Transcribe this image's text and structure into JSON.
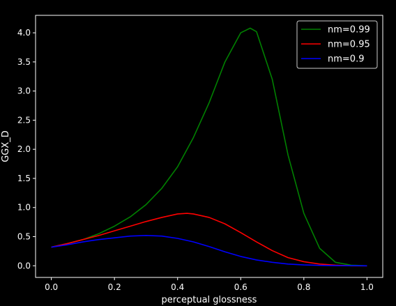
{
  "chart_data": {
    "type": "line",
    "title": "",
    "xlabel": "perceptual glossness",
    "ylabel": "GGX_D",
    "xlim": [
      -0.05,
      1.05
    ],
    "ylim": [
      -0.2,
      4.3
    ],
    "xticks": [
      0.0,
      0.2,
      0.4,
      0.6,
      0.8,
      1.0
    ],
    "xtick_labels": [
      "0.0",
      "0.2",
      "0.4",
      "0.6",
      "0.8",
      "1.0"
    ],
    "yticks": [
      0.0,
      0.5,
      1.0,
      1.5,
      2.0,
      2.5,
      3.0,
      3.5,
      4.0
    ],
    "ytick_labels": [
      "0.0",
      "0.5",
      "1.0",
      "1.5",
      "2.0",
      "2.5",
      "3.0",
      "3.5",
      "4.0"
    ],
    "grid": false,
    "legend_position": "top-right",
    "background": "#000000",
    "foreground": "#ffffff",
    "series": [
      {
        "name": "nm=0.99",
        "color": "#008000",
        "x": [
          0.0,
          0.05,
          0.1,
          0.15,
          0.2,
          0.25,
          0.3,
          0.35,
          0.4,
          0.45,
          0.5,
          0.55,
          0.6,
          0.63,
          0.65,
          0.7,
          0.75,
          0.8,
          0.85,
          0.9,
          0.95,
          1.0
        ],
        "y": [
          0.32,
          0.38,
          0.45,
          0.55,
          0.68,
          0.84,
          1.05,
          1.33,
          1.7,
          2.2,
          2.8,
          3.5,
          4.0,
          4.08,
          4.02,
          3.2,
          1.9,
          0.9,
          0.3,
          0.06,
          0.01,
          0.0
        ]
      },
      {
        "name": "nm=0.95",
        "color": "#ff0000",
        "x": [
          0.0,
          0.05,
          0.1,
          0.15,
          0.2,
          0.25,
          0.3,
          0.35,
          0.4,
          0.43,
          0.45,
          0.5,
          0.55,
          0.6,
          0.65,
          0.7,
          0.75,
          0.8,
          0.85,
          0.9,
          0.95,
          1.0
        ],
        "y": [
          0.32,
          0.38,
          0.45,
          0.52,
          0.6,
          0.68,
          0.76,
          0.83,
          0.89,
          0.9,
          0.89,
          0.83,
          0.72,
          0.57,
          0.41,
          0.26,
          0.14,
          0.07,
          0.03,
          0.01,
          0.0,
          0.0
        ]
      },
      {
        "name": "nm=0.9",
        "color": "#0000ff",
        "x": [
          0.0,
          0.05,
          0.1,
          0.15,
          0.2,
          0.25,
          0.3,
          0.35,
          0.4,
          0.45,
          0.5,
          0.55,
          0.6,
          0.65,
          0.7,
          0.75,
          0.8,
          0.85,
          0.9,
          0.95,
          1.0
        ],
        "y": [
          0.32,
          0.36,
          0.41,
          0.45,
          0.48,
          0.51,
          0.52,
          0.51,
          0.47,
          0.41,
          0.33,
          0.24,
          0.16,
          0.1,
          0.06,
          0.03,
          0.015,
          0.007,
          0.003,
          0.001,
          0.0
        ]
      }
    ]
  }
}
